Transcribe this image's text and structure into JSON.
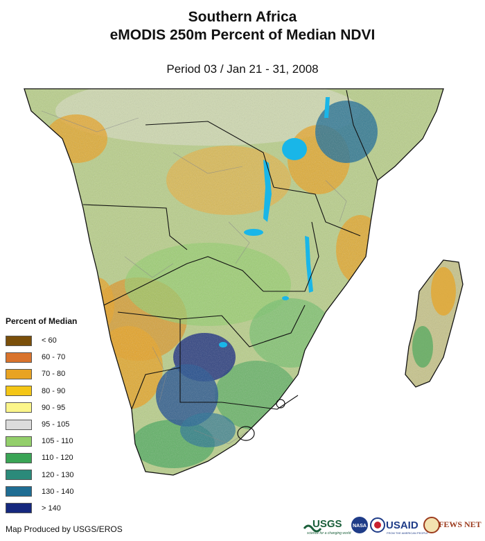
{
  "header": {
    "title_line1": "Southern Africa",
    "title_line2": "eMODIS 250m Percent of Median NDVI",
    "period": "Period 03 / Jan 21 - 31, 2008"
  },
  "legend": {
    "title": "Percent of Median",
    "items": [
      {
        "label": "< 60",
        "color": "#7a4f0a"
      },
      {
        "label": "60 - 70",
        "color": "#d9732c"
      },
      {
        "label": "70 - 80",
        "color": "#e8a322"
      },
      {
        "label": "80 - 90",
        "color": "#f4c616"
      },
      {
        "label": "90 - 95",
        "color": "#fbf58a"
      },
      {
        "label": "95 - 105",
        "color": "#dcdcdc"
      },
      {
        "label": "105 - 110",
        "color": "#93cf6b"
      },
      {
        "label": "110 - 120",
        "color": "#3aa455"
      },
      {
        "label": "120 - 130",
        "color": "#2b8a7a"
      },
      {
        "label": "130 - 140",
        "color": "#1f6d93"
      },
      {
        "label": "> 140",
        "color": "#15287e"
      }
    ]
  },
  "footer": {
    "credit": "Map Produced by USGS/EROS",
    "logos": {
      "usgs": "USGS",
      "usgs_tagline": "science for a changing world",
      "nasa": "NASA",
      "usaid": "USAID",
      "usaid_tagline": "FROM THE AMERICAN PEOPLE",
      "fews": "FEWS NET"
    }
  },
  "map": {
    "water_color": "#19b6e8",
    "border_color": "#111111"
  }
}
